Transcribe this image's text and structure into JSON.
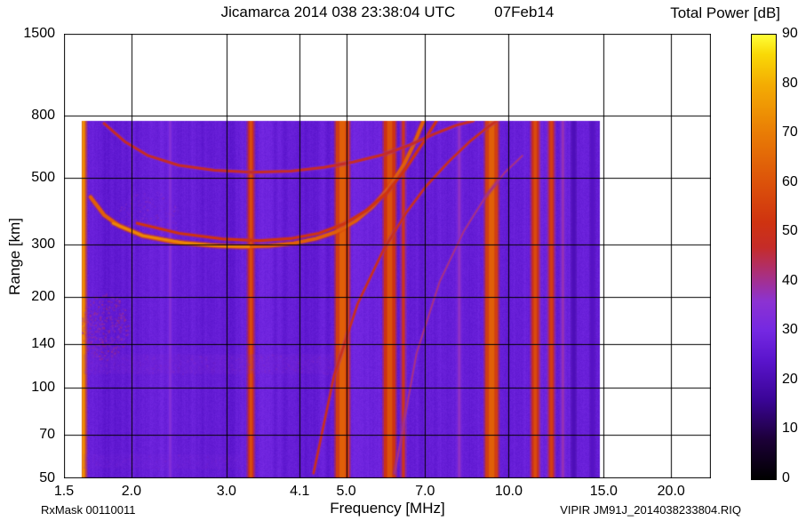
{
  "chart_data": {
    "type": "heatmap",
    "title": "Jicamarca 2014 038 23:38:04 UTC",
    "date_label": "07Feb14",
    "colorbar_title": "Total Power [dB]",
    "xlabel": "Frequency [MHz]",
    "ylabel": "Range [km]",
    "footer_left": "RxMask 00110011",
    "footer_right": "VIPIR  JM91J_2014038233804.RIQ",
    "x_scale": "log",
    "y_scale": "log",
    "x_range": [
      1.5,
      23.7
    ],
    "y_range": [
      50,
      1500
    ],
    "x_ticks": [
      1.5,
      2.0,
      3.0,
      4.1,
      5.0,
      7.0,
      10.0,
      15.0,
      20.0
    ],
    "x_tick_labels": [
      "1.5",
      "2.0",
      "3.0",
      "4.1",
      "5.0",
      "7.0",
      "10.0",
      "15.0",
      "20.0"
    ],
    "y_ticks": [
      1500,
      800,
      500,
      300,
      200,
      140,
      100,
      70,
      50
    ],
    "y_tick_labels": [
      "1500",
      "800",
      "500",
      "300",
      "200",
      "140",
      "100",
      "70",
      "50"
    ],
    "colorbar": {
      "min": 0,
      "max": 90,
      "ticks": [
        0,
        10,
        20,
        30,
        40,
        50,
        60,
        70,
        80,
        90
      ]
    },
    "colormap": [
      [
        0,
        "#000000"
      ],
      [
        8,
        "#1c0038"
      ],
      [
        16,
        "#3a0496"
      ],
      [
        24,
        "#5a14cc"
      ],
      [
        30,
        "#7428e2"
      ],
      [
        36,
        "#8c32d2"
      ],
      [
        42,
        "#ad2f74"
      ],
      [
        47,
        "#c52c28"
      ],
      [
        52,
        "#cf3310"
      ],
      [
        60,
        "#dc520a"
      ],
      [
        70,
        "#e97c05"
      ],
      [
        80,
        "#f4ad03"
      ],
      [
        86,
        "#f9d906"
      ],
      [
        90,
        "#ffff38"
      ]
    ],
    "data_extent": {
      "f_min": 1.62,
      "f_max": 14.75,
      "r_min": 50,
      "r_max": 770
    },
    "background_db": 27,
    "seed": 42,
    "rfi_stripes": [
      {
        "f": 1.63,
        "w": 5,
        "db": 66
      },
      {
        "f": 2.36,
        "w": 3,
        "db": 34
      },
      {
        "f": 3.33,
        "w": 6,
        "db": 51
      },
      {
        "f": 4.92,
        "w": 15,
        "db": 55
      },
      {
        "f": 6.02,
        "w": 13,
        "db": 52
      },
      {
        "f": 6.38,
        "w": 4,
        "db": 45
      },
      {
        "f": 8.1,
        "w": 3,
        "db": 37
      },
      {
        "f": 9.3,
        "w": 14,
        "db": 55
      },
      {
        "f": 11.2,
        "w": 8,
        "db": 50
      },
      {
        "f": 12.0,
        "w": 6,
        "db": 47
      },
      {
        "f": 12.6,
        "w": 3,
        "db": 38
      },
      {
        "f": 13.2,
        "w": 3,
        "db": 21
      },
      {
        "f": 14.3,
        "w": 3,
        "db": 23
      }
    ],
    "traces": [
      {
        "name": "f-layer-trace-main",
        "db": 63,
        "width": 4,
        "points": [
          [
            1.68,
            430
          ],
          [
            1.78,
            375
          ],
          [
            1.9,
            345
          ],
          [
            2.1,
            320
          ],
          [
            2.4,
            305
          ],
          [
            2.8,
            297
          ],
          [
            3.2,
            294
          ],
          [
            3.6,
            296
          ],
          [
            4.0,
            302
          ],
          [
            4.4,
            313
          ],
          [
            4.8,
            330
          ],
          [
            5.2,
            358
          ],
          [
            5.6,
            400
          ],
          [
            6.0,
            462
          ],
          [
            6.4,
            552
          ],
          [
            6.7,
            655
          ],
          [
            6.95,
            770
          ]
        ]
      },
      {
        "name": "f-layer-trace-bright-core",
        "db": 72,
        "width": 3,
        "points": [
          [
            1.85,
            352
          ],
          [
            2.1,
            320
          ],
          [
            2.5,
            303
          ],
          [
            2.9,
            296
          ],
          [
            3.3,
            294
          ]
        ]
      },
      {
        "name": "f-layer-trace-x-mode",
        "db": 52,
        "width": 3,
        "points": [
          [
            2.05,
            352
          ],
          [
            2.45,
            326
          ],
          [
            2.95,
            312
          ],
          [
            3.45,
            308
          ],
          [
            3.95,
            313
          ],
          [
            4.45,
            326
          ],
          [
            4.95,
            350
          ],
          [
            5.45,
            388
          ],
          [
            5.95,
            445
          ],
          [
            6.45,
            535
          ],
          [
            6.95,
            655
          ],
          [
            7.35,
            770
          ]
        ]
      },
      {
        "name": "second-hop-arc",
        "db": 47,
        "width": 3,
        "points": [
          [
            1.78,
            755
          ],
          [
            1.95,
            655
          ],
          [
            2.15,
            590
          ],
          [
            2.45,
            548
          ],
          [
            2.85,
            528
          ],
          [
            3.35,
            520
          ],
          [
            3.95,
            524
          ],
          [
            4.55,
            540
          ],
          [
            5.15,
            562
          ],
          [
            5.85,
            595
          ],
          [
            6.55,
            640
          ],
          [
            7.25,
            695
          ],
          [
            8.0,
            745
          ],
          [
            8.6,
            770
          ]
        ]
      },
      {
        "name": "oblique-echo-diagonal",
        "db": 49,
        "width": 2.5,
        "points": [
          [
            4.35,
            52
          ],
          [
            4.75,
            110
          ],
          [
            5.25,
            190
          ],
          [
            5.85,
            285
          ],
          [
            6.45,
            380
          ],
          [
            7.05,
            470
          ],
          [
            7.75,
            565
          ],
          [
            8.45,
            655
          ],
          [
            9.15,
            735
          ],
          [
            9.5,
            770
          ]
        ]
      },
      {
        "name": "oblique-echo-diagonal-faint",
        "db": 41,
        "width": 2,
        "points": [
          [
            6.15,
            52
          ],
          [
            6.75,
            130
          ],
          [
            7.45,
            225
          ],
          [
            8.25,
            330
          ],
          [
            9.05,
            430
          ],
          [
            9.85,
            520
          ],
          [
            10.6,
            590
          ]
        ]
      }
    ],
    "patches": [
      {
        "kind": "blob",
        "f": 1.78,
        "r": 160,
        "rx": 27,
        "ry": 38,
        "db": 40,
        "alpha": 0.5,
        "n": 420
      },
      {
        "kind": "blob",
        "f": 2.15,
        "r": 372,
        "rx": 34,
        "ry": 30,
        "db": 36,
        "alpha": 0.3,
        "n": 260
      },
      {
        "kind": "band",
        "f_from": 1.63,
        "f_to": 4.7,
        "r": 120,
        "hh": 11,
        "db": 35,
        "alpha": 0.22,
        "n": 700
      },
      {
        "kind": "band",
        "f_from": 1.63,
        "f_to": 3.2,
        "r": 57,
        "hh": 8,
        "db": 34,
        "alpha": 0.18,
        "n": 250
      }
    ]
  }
}
